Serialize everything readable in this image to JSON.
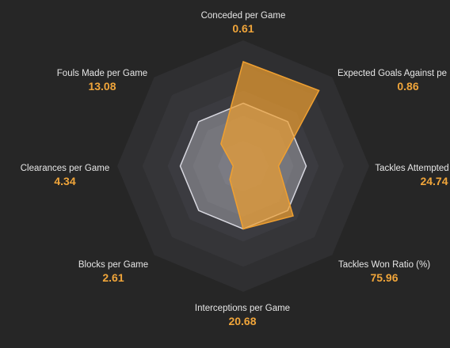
{
  "chart_data": {
    "type": "radar",
    "categories": [
      "Conceded per Game",
      "Expected Goals Against pe",
      "Tackles Attempted",
      "Tackles Won Ratio (%)",
      "Interceptions per Game",
      "Blocks per Game",
      "Clearances per Game",
      "Fouls Made per Game"
    ],
    "stat_values": [
      0.61,
      0.86,
      24.74,
      75.96,
      20.68,
      2.61,
      4.34,
      13.08
    ],
    "rlim": [
      0,
      100
    ],
    "series": [
      {
        "color": "#d8d8e0",
        "values": [
          50,
          50,
          50,
          50,
          50,
          50,
          50,
          50
        ]
      },
      {
        "color": "#f0a030",
        "values": [
          83,
          85,
          28,
          56,
          50,
          15,
          8,
          25
        ]
      }
    ]
  }
}
